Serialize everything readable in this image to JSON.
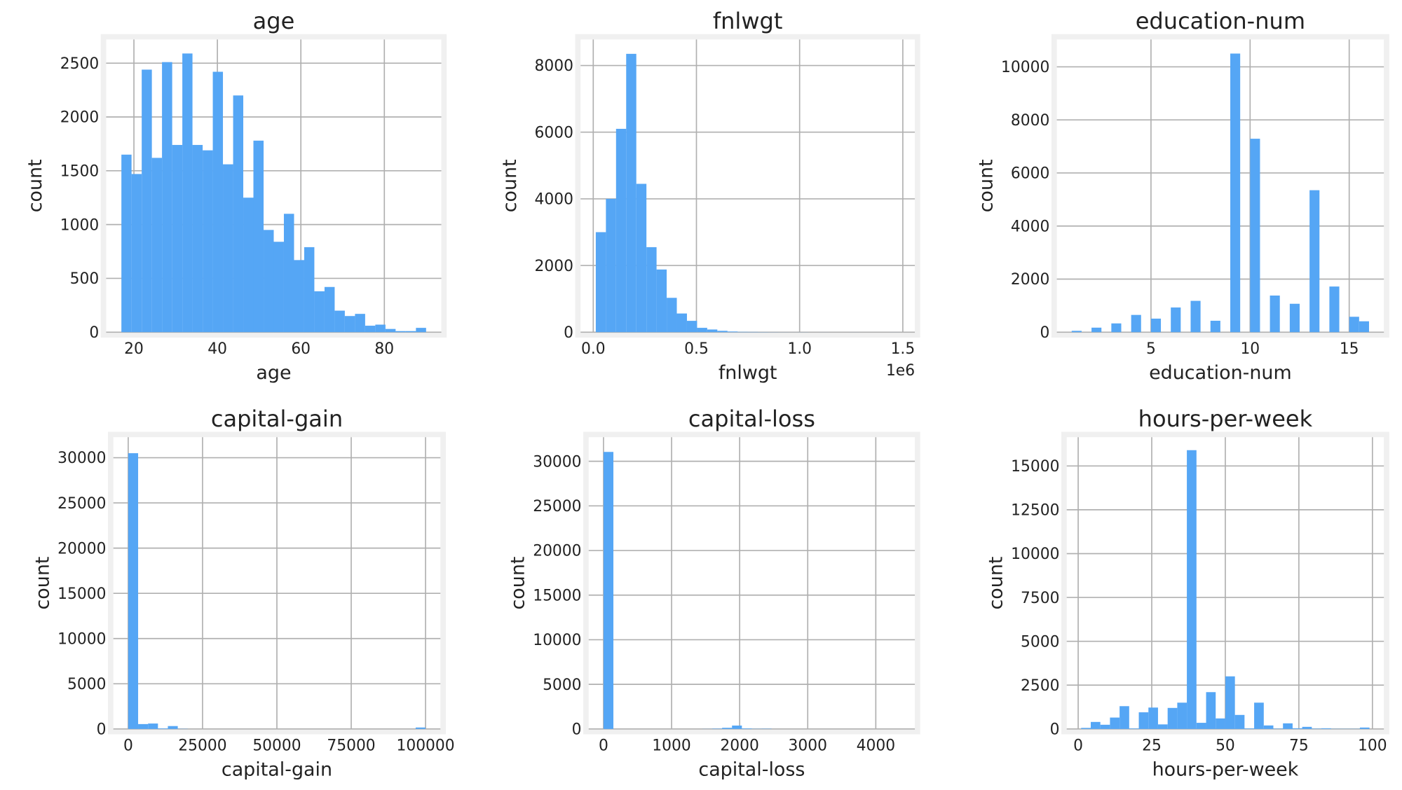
{
  "chart_data": [
    {
      "type": "histogram",
      "title": "age",
      "xlabel": "age",
      "ylabel": "count",
      "color": "#55a6f5",
      "grid": true,
      "bins": [
        17,
        19.43,
        21.87,
        24.3,
        26.73,
        29.17,
        31.6,
        34.03,
        36.47,
        38.9,
        41.33,
        43.77,
        46.2,
        48.63,
        51.07,
        53.5,
        55.93,
        58.37,
        60.8,
        63.23,
        65.67,
        68.1,
        70.53,
        72.97,
        75.4,
        77.83,
        80.27,
        82.7,
        85.13,
        87.57,
        90
      ],
      "values": [
        1650,
        1470,
        2440,
        1620,
        2510,
        1740,
        2590,
        1740,
        1690,
        2420,
        1560,
        2200,
        1250,
        1780,
        950,
        840,
        1100,
        670,
        790,
        380,
        420,
        200,
        150,
        170,
        60,
        70,
        30,
        10,
        10,
        40
      ],
      "xlim": [
        13.35,
        93.65
      ],
      "ylim": [
        0,
        2720
      ],
      "xticks": [
        20,
        40,
        60,
        80
      ],
      "yticks": [
        0,
        500,
        1000,
        1500,
        2000,
        2500
      ]
    },
    {
      "type": "histogram",
      "title": "fnlwgt",
      "xlabel": "fnlwgt",
      "ylabel": "count",
      "x_offset_label": "1e6",
      "color": "#55a6f5",
      "grid": true,
      "bins": [
        12285,
        61366,
        110447,
        159528,
        208609,
        257690,
        306771,
        355852,
        404933,
        454014,
        503095,
        552176,
        601257,
        650338,
        699419,
        748500,
        797581,
        846662,
        895743,
        944824,
        993905,
        1042986,
        1092067,
        1141148,
        1190229,
        1239310,
        1288391,
        1337472,
        1386553,
        1435634,
        1484715
      ],
      "values": [
        3000,
        4000,
        6100,
        8350,
        4450,
        2550,
        1880,
        1030,
        560,
        340,
        130,
        80,
        40,
        20,
        10,
        8,
        5,
        3,
        2,
        1,
        2,
        0,
        1,
        0,
        0,
        1,
        0,
        0,
        0,
        1
      ],
      "xlim": [
        -61336,
        1558336
      ],
      "ylim": [
        0,
        8780
      ],
      "xticks": [
        {
          "value": 0,
          "label": "0.0"
        },
        {
          "value": 500000,
          "label": "0.5"
        },
        {
          "value": 1000000,
          "label": "1.0"
        },
        {
          "value": 1500000,
          "label": "1.5"
        }
      ],
      "yticks": [
        0,
        2000,
        4000,
        6000,
        8000
      ]
    },
    {
      "type": "histogram",
      "title": "education-num",
      "xlabel": "education-num",
      "ylabel": "count",
      "color": "#55a6f5",
      "grid": true,
      "bins": [
        1,
        1.5,
        2,
        2.5,
        3,
        3.5,
        4,
        4.5,
        5,
        5.5,
        6,
        6.5,
        7,
        7.5,
        8,
        8.5,
        9,
        9.5,
        10,
        10.5,
        11,
        11.5,
        12,
        12.5,
        13,
        13.5,
        14,
        14.5,
        15,
        15.5,
        16
      ],
      "values": [
        50,
        0,
        170,
        0,
        330,
        0,
        650,
        0,
        510,
        0,
        930,
        0,
        1180,
        0,
        430,
        0,
        10500,
        0,
        7290,
        0,
        1380,
        0,
        1070,
        0,
        5350,
        0,
        1720,
        0,
        580,
        410
      ],
      "xlim": [
        0.25,
        16.75
      ],
      "ylim": [
        0,
        11030
      ],
      "xticks": [
        5,
        10,
        15
      ],
      "yticks": [
        0,
        2000,
        4000,
        6000,
        8000,
        10000
      ]
    },
    {
      "type": "histogram",
      "title": "capital-gain",
      "xlabel": "capital-gain",
      "ylabel": "count",
      "color": "#55a6f5",
      "grid": true,
      "bins": [
        0,
        3333.3,
        6666.6,
        9999.9,
        13333.2,
        16666.5,
        19999.8,
        23333.1,
        26666.4,
        29999.7,
        33333,
        36666.3,
        39999.6,
        43332.9,
        46666.2,
        49999.5,
        53332.8,
        56666.1,
        59999.4,
        63332.7,
        66666,
        69999.3,
        73332.6,
        76665.9,
        79999.2,
        83332.5,
        86665.8,
        89999.1,
        93332.4,
        96665.7,
        99999
      ],
      "values": [
        30500,
        540,
        600,
        60,
        320,
        20,
        0,
        0,
        0,
        0,
        0,
        0,
        0,
        0,
        0,
        0,
        0,
        0,
        0,
        0,
        0,
        0,
        0,
        0,
        0,
        0,
        0,
        0,
        0,
        160
      ],
      "xlim": [
        -5000,
        105000
      ],
      "ylim": [
        0,
        32270
      ],
      "xticks": [
        0,
        25000,
        50000,
        75000,
        100000
      ],
      "yticks": [
        0,
        5000,
        10000,
        15000,
        20000,
        25000,
        30000
      ]
    },
    {
      "type": "histogram",
      "title": "capital-loss",
      "xlabel": "capital-loss",
      "ylabel": "count",
      "color": "#55a6f5",
      "grid": true,
      "bins": [
        0,
        145.2,
        290.4,
        435.6,
        580.8,
        726,
        871.2,
        1016.4,
        1161.6,
        1306.8,
        1452,
        1597.2,
        1742.4,
        1887.6,
        2032.8,
        2178,
        2323.2,
        2468.4,
        2613.6,
        2758.8,
        2904,
        3049.2,
        3194.4,
        3339.6,
        3484.8,
        3630,
        3775.2,
        3920.4,
        4065.6,
        4210.8,
        4356
      ],
      "values": [
        31050,
        0,
        0,
        0,
        0,
        0,
        0,
        0,
        0,
        0,
        10,
        40,
        130,
        380,
        60,
        20,
        30,
        0,
        0,
        0,
        0,
        0,
        0,
        0,
        0,
        0,
        0,
        0,
        0,
        0
      ],
      "xlim": [
        -217.8,
        4573.8
      ],
      "ylim": [
        0,
        32700
      ],
      "xticks": [
        0,
        1000,
        2000,
        3000,
        4000
      ],
      "yticks": [
        0,
        5000,
        10000,
        15000,
        20000,
        25000,
        30000
      ]
    },
    {
      "type": "histogram",
      "title": "hours-per-week",
      "xlabel": "hours-per-week",
      "ylabel": "count",
      "color": "#55a6f5",
      "grid": true,
      "bins": [
        1,
        4.27,
        7.53,
        10.8,
        14.07,
        17.33,
        20.6,
        23.87,
        27.13,
        30.4,
        33.67,
        36.93,
        40.2,
        43.47,
        46.73,
        50,
        53.27,
        56.53,
        59.8,
        63.07,
        66.33,
        69.6,
        72.87,
        76.13,
        79.4,
        82.67,
        85.93,
        89.2,
        92.47,
        95.73,
        99
      ],
      "values": [
        60,
        400,
        240,
        650,
        1300,
        30,
        950,
        1220,
        260,
        1200,
        1500,
        15900,
        350,
        2100,
        600,
        3000,
        800,
        30,
        1500,
        200,
        20,
        320,
        40,
        120,
        20,
        40,
        10,
        10,
        10,
        80
      ],
      "xlim": [
        -3.9,
        103.9
      ],
      "ylim": [
        0,
        16640
      ],
      "xticks": [
        0,
        25,
        50,
        75,
        100
      ],
      "yticks": [
        0,
        2500,
        5000,
        7500,
        10000,
        12500,
        15000
      ]
    }
  ]
}
